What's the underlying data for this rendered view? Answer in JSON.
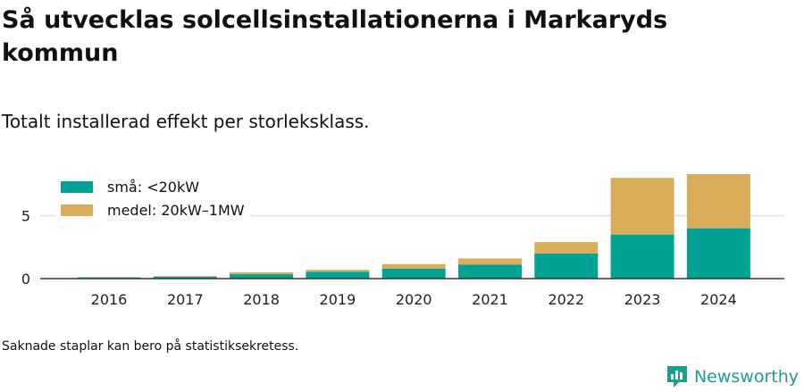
{
  "title": "Så utvecklas solcellsinstallationerna i Markaryds kommun",
  "subtitle": "Totalt installerad effekt per storleksklass.",
  "note": "Saknade staplar kan bero på statistiksekretess.",
  "brand": {
    "name": "Newsworthy",
    "icon": "newsworthy-logo-icon"
  },
  "colors": {
    "small": "#00a294",
    "medium": "#d9ad5a",
    "grid": "#dddddd",
    "axis": "#333333"
  },
  "chart_data": {
    "type": "bar",
    "stacked": true,
    "categories": [
      "2016",
      "2017",
      "2018",
      "2019",
      "2020",
      "2021",
      "2022",
      "2023",
      "2024"
    ],
    "series": [
      {
        "name": "små: <20kW",
        "values": [
          0.1,
          0.15,
          0.35,
          0.55,
          0.8,
          1.1,
          2.0,
          3.5,
          4.0
        ]
      },
      {
        "name": "medel: 20kW–1MW",
        "values": [
          0.0,
          0.05,
          0.15,
          0.15,
          0.35,
          0.5,
          0.9,
          4.5,
          4.3
        ]
      }
    ],
    "yticks": [
      0,
      5
    ],
    "ylim": [
      0,
      8.5
    ],
    "grid": true,
    "legend_position": "top-left"
  }
}
